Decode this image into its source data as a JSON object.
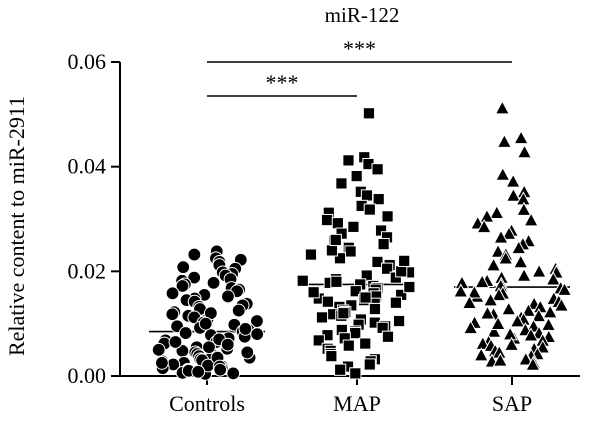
{
  "chart_data": {
    "type": "scatter",
    "title": "miR-122",
    "ylabel": "Relative content to miR-2911",
    "xlabel": "",
    "ylim": [
      0,
      0.06
    ],
    "yticks": [
      "0.00",
      "0.02",
      "0.04",
      "0.06"
    ],
    "ytick_values": [
      0,
      0.02,
      0.04,
      0.06
    ],
    "categories": [
      "Controls",
      "MAP",
      "SAP"
    ],
    "series": [
      {
        "category": "Controls",
        "marker": "circle",
        "mean": 0.0085,
        "values": [
          0.0238,
          0.0232,
          0.0225,
          0.0222,
          0.0218,
          0.0212,
          0.0208,
          0.0205,
          0.0198,
          0.0195,
          0.0192,
          0.0188,
          0.0185,
          0.0182,
          0.0178,
          0.0175,
          0.0172,
          0.0168,
          0.0165,
          0.0162,
          0.0158,
          0.0155,
          0.0152,
          0.0148,
          0.0145,
          0.0142,
          0.0138,
          0.0135,
          0.0132,
          0.0128,
          0.0125,
          0.0122,
          0.0118,
          0.0115,
          0.0112,
          0.0108,
          0.0105,
          0.0102,
          0.0098,
          0.0095,
          0.0092,
          0.0088,
          0.0085,
          0.0082,
          0.0078,
          0.0075,
          0.0072,
          0.0068,
          0.0065,
          0.0062,
          0.0058,
          0.0055,
          0.0052,
          0.0048,
          0.0045,
          0.0042,
          0.0038,
          0.0035,
          0.0032,
          0.0028,
          0.0025,
          0.0022,
          0.0018,
          0.0015,
          0.0012,
          0.001,
          0.0008,
          0.0006,
          0.0005,
          0.0004,
          0.012,
          0.009,
          0.007,
          0.006,
          0.005,
          0.004,
          0.003,
          0.002,
          0.0015,
          0.001,
          0.01,
          0.008,
          0.0065,
          0.0055,
          0.0045,
          0.0035,
          0.0025,
          0.0018,
          0.0012,
          0.0008
        ]
      },
      {
        "category": "MAP",
        "marker": "square",
        "mean": 0.0175,
        "values": [
          0.0502,
          0.0418,
          0.0412,
          0.0405,
          0.0395,
          0.0382,
          0.0368,
          0.0352,
          0.0345,
          0.0338,
          0.0325,
          0.0318,
          0.0312,
          0.0305,
          0.0298,
          0.0292,
          0.0285,
          0.0278,
          0.0272,
          0.0265,
          0.0258,
          0.0252,
          0.0245,
          0.0238,
          0.0232,
          0.0225,
          0.0218,
          0.0212,
          0.0205,
          0.0198,
          0.0192,
          0.0188,
          0.0185,
          0.0182,
          0.0178,
          0.0175,
          0.0172,
          0.0168,
          0.0165,
          0.0162,
          0.0158,
          0.0155,
          0.0152,
          0.0148,
          0.0145,
          0.0142,
          0.0138,
          0.0135,
          0.0132,
          0.0128,
          0.0125,
          0.0122,
          0.0118,
          0.0115,
          0.0112,
          0.0108,
          0.0105,
          0.0102,
          0.0098,
          0.0095,
          0.0092,
          0.0088,
          0.0085,
          0.0082,
          0.0078,
          0.0075,
          0.0072,
          0.0068,
          0.0062,
          0.0058,
          0.0052,
          0.0048,
          0.0042,
          0.0038,
          0.0032,
          0.0028,
          0.0022,
          0.0018,
          0.0012,
          0.0005,
          0.02,
          0.018,
          0.016,
          0.014,
          0.012,
          0.022,
          0.024,
          0.026,
          0.015,
          0.017
        ]
      },
      {
        "category": "SAP",
        "marker": "triangle",
        "mean": 0.017,
        "values": [
          0.0512,
          0.0455,
          0.0448,
          0.0428,
          0.0385,
          0.0372,
          0.0352,
          0.0345,
          0.0338,
          0.0318,
          0.0312,
          0.0305,
          0.0298,
          0.0292,
          0.0285,
          0.0278,
          0.0272,
          0.0265,
          0.0258,
          0.0252,
          0.0245,
          0.0238,
          0.0232,
          0.0225,
          0.0218,
          0.0212,
          0.0205,
          0.0198,
          0.0192,
          0.0188,
          0.0185,
          0.0182,
          0.0178,
          0.0175,
          0.0172,
          0.0168,
          0.0165,
          0.0162,
          0.0158,
          0.0155,
          0.0152,
          0.0148,
          0.0145,
          0.0142,
          0.0138,
          0.0135,
          0.0132,
          0.0128,
          0.0125,
          0.0122,
          0.0118,
          0.0115,
          0.0112,
          0.0108,
          0.0105,
          0.0102,
          0.0098,
          0.0095,
          0.0092,
          0.0088,
          0.0085,
          0.0082,
          0.0078,
          0.0075,
          0.0072,
          0.0068,
          0.0065,
          0.0062,
          0.0058,
          0.0055,
          0.0052,
          0.0048,
          0.0045,
          0.0042,
          0.0038,
          0.0035,
          0.0032,
          0.0028,
          0.0025,
          0.0022,
          0.02,
          0.018,
          0.016,
          0.014,
          0.012,
          0.01,
          0.008,
          0.006,
          0.004,
          0.003
        ]
      }
    ],
    "significance": [
      {
        "from": "Controls",
        "to": "MAP",
        "label": "***"
      },
      {
        "from": "Controls",
        "to": "SAP",
        "label": "***"
      }
    ],
    "grid": false,
    "legend": "none"
  }
}
